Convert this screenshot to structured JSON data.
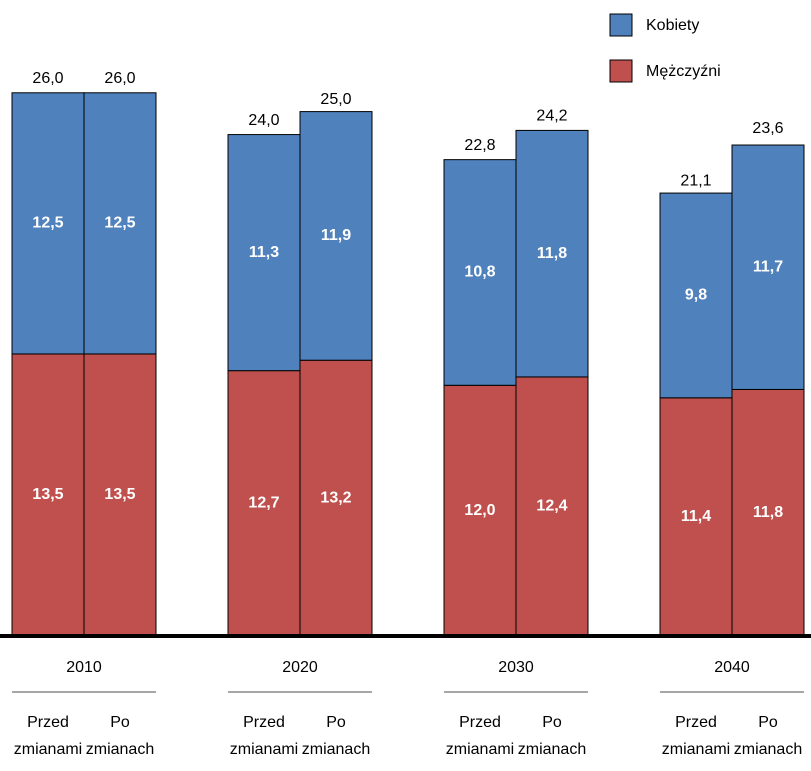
{
  "chart_data": {
    "type": "stacked_bar",
    "groups": [
      "2010",
      "2020",
      "2030",
      "2040"
    ],
    "categories": [
      [
        "Przed",
        "zmianami"
      ],
      [
        "Po",
        "zmianach"
      ],
      [
        "Przed",
        "zmianami"
      ],
      [
        "Po",
        "zmianach"
      ],
      [
        "Przed",
        "zmianami"
      ],
      [
        "Po",
        "zmianach"
      ],
      [
        "Przed",
        "zmianami"
      ],
      [
        "Po",
        "zmianach"
      ]
    ],
    "series": [
      {
        "name": "Mężczyźni",
        "color": "#c0504d",
        "values": [
          13.5,
          13.5,
          12.7,
          13.2,
          12.0,
          12.4,
          11.4,
          11.8
        ],
        "value_labels": [
          "13,5",
          "13,5",
          "12,7",
          "13,2",
          "12,0",
          "12,4",
          "11,4",
          "11,8"
        ]
      },
      {
        "name": "Kobiety",
        "color": "#4f81bd",
        "values": [
          12.5,
          12.5,
          11.3,
          11.9,
          10.8,
          11.8,
          9.8,
          11.7
        ],
        "value_labels": [
          "12,5",
          "12,5",
          "11,3",
          "11,9",
          "10,8",
          "11,8",
          "9,8",
          "11,7"
        ]
      }
    ],
    "totals": [
      26.0,
      26.0,
      24.0,
      25.0,
      22.8,
      24.2,
      21.1,
      23.6
    ],
    "total_labels": [
      "26,0",
      "26,0",
      "24,0",
      "25,0",
      "22,8",
      "24,2",
      "21,1",
      "23,6"
    ],
    "ylim": [
      0,
      28
    ]
  }
}
